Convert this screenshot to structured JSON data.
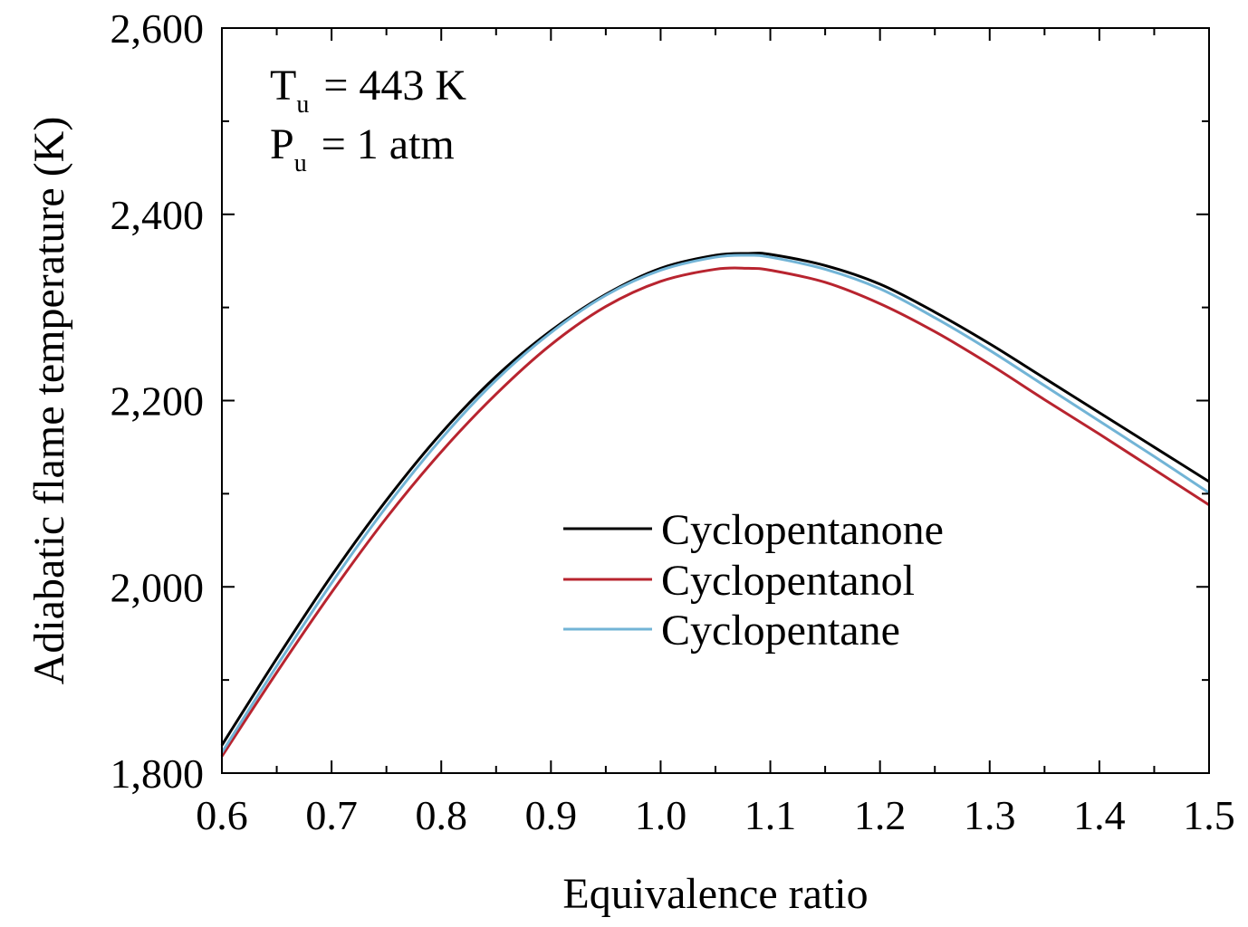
{
  "chart_data": {
    "type": "line",
    "xlabel": "Equivalence ratio",
    "ylabel": "Adiabatic flame temperature (K)",
    "xlim": [
      0.6,
      1.5
    ],
    "ylim": [
      1800,
      2600
    ],
    "x_ticks": [
      "0.6",
      "0.7",
      "0.8",
      "0.9",
      "1.0",
      "1.1",
      "1.2",
      "1.3",
      "1.4",
      "1.5"
    ],
    "y_ticks": [
      "1,800",
      "2,000",
      "2,200",
      "2,400",
      "2,600"
    ],
    "legend_position": "center-right",
    "grid": false,
    "annotations": [
      {
        "main": "T",
        "sub": "u",
        "rest": " = 443 K"
      },
      {
        "main": "P",
        "sub": "u",
        "rest": " = 1 atm"
      }
    ],
    "x": [
      0.6,
      0.65,
      0.7,
      0.75,
      0.8,
      0.85,
      0.9,
      0.95,
      1.0,
      1.05,
      1.08,
      1.1,
      1.15,
      1.2,
      1.25,
      1.3,
      1.35,
      1.4,
      1.45,
      1.5
    ],
    "series": [
      {
        "name": "Cyclopentanone",
        "color": "#000000",
        "values": [
          1830,
          1923,
          2012,
          2093,
          2165,
          2226,
          2275,
          2314,
          2342,
          2356,
          2358,
          2357,
          2345,
          2325,
          2295,
          2261,
          2224,
          2187,
          2150,
          2113
        ]
      },
      {
        "name": "Cyclopentanol",
        "color": "#b8242f",
        "values": [
          1818,
          1908,
          1994,
          2074,
          2145,
          2207,
          2260,
          2301,
          2328,
          2341,
          2342,
          2340,
          2327,
          2304,
          2274,
          2239,
          2201,
          2164,
          2126,
          2088
        ]
      },
      {
        "name": "Cyclopentane",
        "color": "#72b4d6",
        "values": [
          1822,
          1915,
          2004,
          2086,
          2159,
          2222,
          2273,
          2313,
          2340,
          2354,
          2356,
          2354,
          2341,
          2320,
          2289,
          2254,
          2216,
          2178,
          2140,
          2101
        ]
      }
    ]
  }
}
